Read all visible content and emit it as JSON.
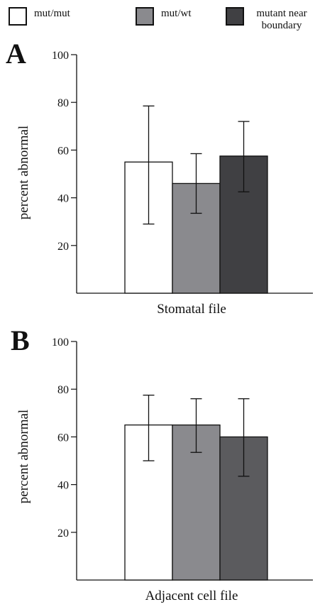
{
  "legend": [
    {
      "label": "mut/mut",
      "color": "#ffffff"
    },
    {
      "label": "mut/wt",
      "color": "#8a8a8e"
    },
    {
      "label": "mutant near boundary",
      "color": "#404043"
    }
  ],
  "chart_data": [
    {
      "type": "bar",
      "panel": "A",
      "xlabel": "Stomatal file",
      "ylabel": "percent abnormal",
      "ylim": [
        0,
        100
      ],
      "yticks": [
        20,
        40,
        60,
        80,
        100
      ],
      "grid": false,
      "legend_position": "top",
      "series": [
        {
          "name": "mut/mut",
          "color": "#ffffff",
          "values": [
            55
          ],
          "error_low": [
            29
          ],
          "error_high": [
            78.5
          ]
        },
        {
          "name": "mut/wt",
          "color": "#8a8a8e",
          "values": [
            46
          ],
          "error_low": [
            33.5
          ],
          "error_high": [
            58.5
          ]
        },
        {
          "name": "mutant near boundary",
          "color": "#404043",
          "values": [
            57.5
          ],
          "error_low": [
            42.5
          ],
          "error_high": [
            72
          ]
        }
      ]
    },
    {
      "type": "bar",
      "panel": "B",
      "xlabel": "Adjacent cell file",
      "ylabel": "percent abnormal",
      "ylim": [
        0,
        100
      ],
      "yticks": [
        20,
        40,
        60,
        80,
        100
      ],
      "grid": false,
      "series": [
        {
          "name": "mut/mut",
          "color": "#ffffff",
          "values": [
            65
          ],
          "error_low": [
            50
          ],
          "error_high": [
            77.5
          ]
        },
        {
          "name": "mut/wt",
          "color": "#8a8a8e",
          "values": [
            65
          ],
          "error_low": [
            53.5
          ],
          "error_high": [
            76
          ]
        },
        {
          "name": "mutant near boundary",
          "color": "#5b5b5e",
          "values": [
            60
          ],
          "error_low": [
            43.5
          ],
          "error_high": [
            76
          ]
        }
      ]
    }
  ]
}
